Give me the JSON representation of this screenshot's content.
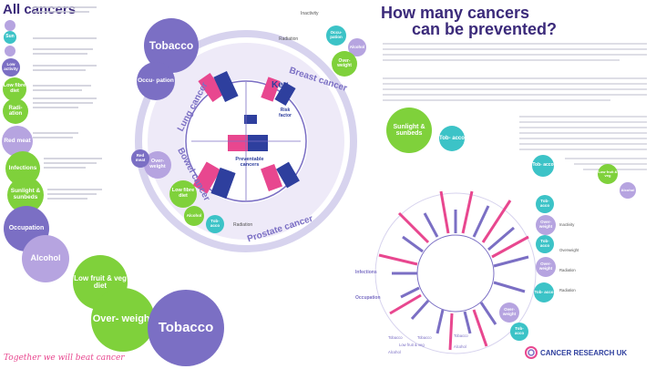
{
  "left": {
    "title": "All cancers",
    "rows": [
      {
        "bubble": "",
        "note": ""
      },
      {
        "bubble": "Sun",
        "note": ""
      },
      {
        "bubble": "",
        "note": ""
      },
      {
        "bubble": "Low activity",
        "note": ""
      },
      {
        "bubble": "Low fibre diet",
        "note": ""
      },
      {
        "bubble": "Radi- ation",
        "note": ""
      },
      {
        "bubble": "Red meat",
        "note": ""
      },
      {
        "bubble": "Infections",
        "note": ""
      },
      {
        "bubble": "Sunlight & sunbeds",
        "note": ""
      },
      {
        "bubble": "Occupation",
        "note": ""
      },
      {
        "bubble": "Alcohol",
        "note": ""
      },
      {
        "bubble": "Low fruit & veg diet",
        "note": ""
      },
      {
        "bubble": "Over- weight",
        "note": ""
      },
      {
        "bubble": "Tobacco",
        "note": ""
      }
    ],
    "footer": "Together we will beat cancer"
  },
  "ring": {
    "tobacco": "Tobacco",
    "occupation": "Occu- pation",
    "lung": "Lung cancer",
    "breast": "Breast cancer",
    "bowel": "Bowel cancer",
    "prostate": "Prostate cancer",
    "red_meat": "Red meat",
    "overweight": "Over- weight",
    "low_fibre": "Low fibre diet",
    "alcohol": "Alcohol",
    "tob_small": "Tob- acco",
    "radiation": "Radiation",
    "inactivity": "Inactivity",
    "radiation_top": "Radiation",
    "occu_top": "Occu- pation",
    "alcohol_top": "Alcohol",
    "overweight_top": "Over- weight"
  },
  "key": {
    "title": "Key",
    "preventable": "Preventable cancers",
    "risk_factor": "Risk factor"
  },
  "right": {
    "title_line1": "How many cancers",
    "title_line2": "can be prevented?",
    "sunlight": "Sunlight & sunbeds",
    "tobacco": "Tob- acco",
    "bubbles": [
      "Tob- acco",
      "Low fruit & veg",
      "Alcohol",
      "Tob- acco",
      "Over- weight",
      "Tob- acco",
      "Over- weight",
      "Tob- acco",
      "Over- weight",
      "Tob- acco"
    ],
    "bottom_labels": [
      "Tobacco",
      "Tobacco",
      "Low fruit & veg",
      "Alcohol",
      "Tobacco",
      "Alcohol"
    ],
    "side_words": [
      "Radiation",
      "Inactivity",
      "Overweight",
      "Radiation"
    ],
    "infections": "Infections",
    "occupation": "Occupation",
    "logo_text": "CANCER RESEARCH UK"
  },
  "colors": {
    "purple": "#7b6fc4",
    "pink": "#e8478f",
    "blue": "#2e3f9e",
    "green": "#7fd13b",
    "teal": "#3cc3c7"
  }
}
